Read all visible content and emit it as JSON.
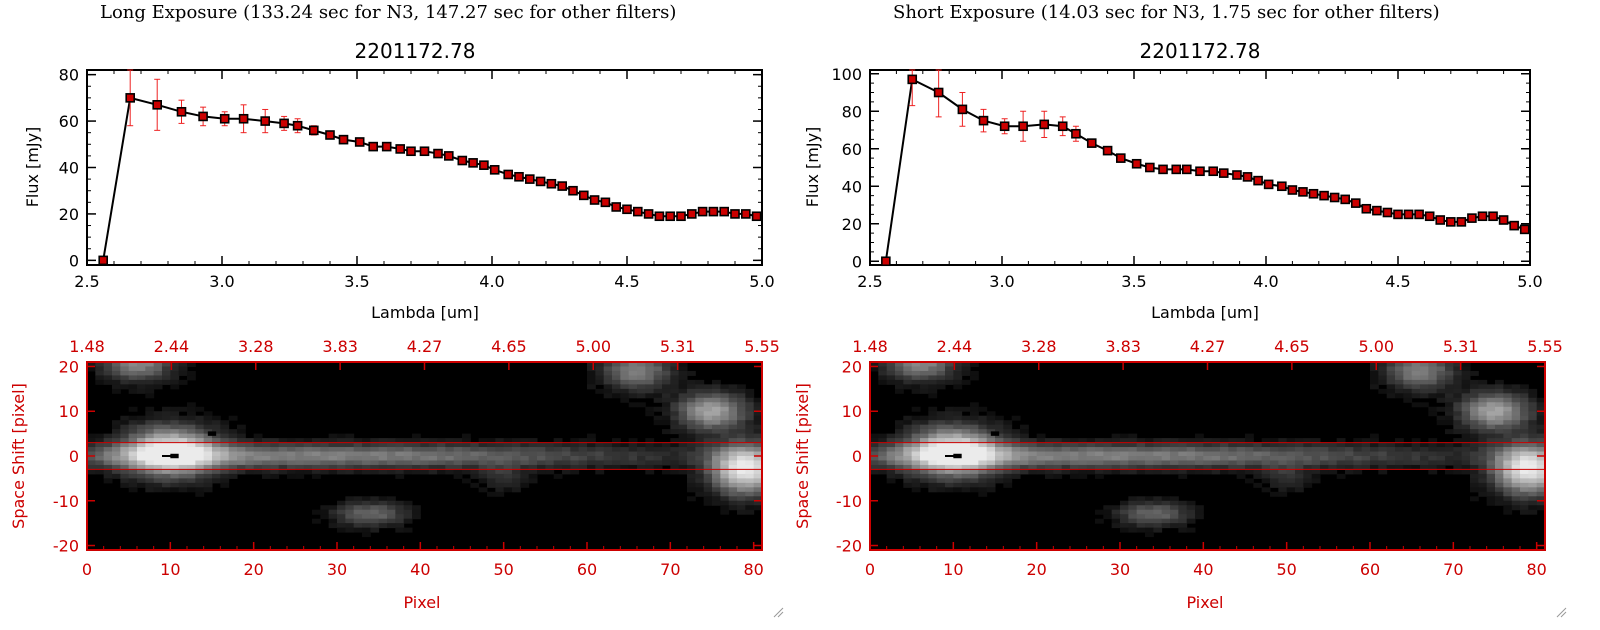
{
  "colors": {
    "axis": "#000000",
    "point": "#cc0000",
    "errbar": "#ee2222",
    "image_axis": "#cc0000",
    "aperture": "#cc0000"
  },
  "panels": [
    {
      "exposure_title": "Long Exposure (133.24 sec for N3, 147.27 sec for other filters)",
      "spectrum": {
        "title": "2201172.78",
        "xlabel": "Lambda [um]",
        "ylabel": "Flux [mJy]"
      },
      "image": {
        "xlabel": "Pixel",
        "ylabel": "Space Shift [pixel]",
        "top_ticks": [
          "1.48",
          "2.44",
          "3.28",
          "3.83",
          "4.27",
          "4.65",
          "5.00",
          "5.31",
          "5.55"
        ]
      }
    },
    {
      "exposure_title": "Short Exposure (14.03 sec for N3, 1.75 sec for other filters)",
      "spectrum": {
        "title": "2201172.78",
        "xlabel": "Lambda [um]",
        "ylabel": "Flux [mJy]"
      },
      "image": {
        "xlabel": "Pixel",
        "ylabel": "Space Shift [pixel]",
        "top_ticks": [
          "1.48",
          "2.44",
          "3.28",
          "3.83",
          "4.27",
          "4.65",
          "5.00",
          "5.31",
          "5.55"
        ]
      }
    }
  ],
  "chart_data": [
    {
      "type": "line",
      "title": "2201172.78",
      "xlabel": "Lambda [um]",
      "ylabel": "Flux [mJy]",
      "xlim": [
        2.5,
        5.0
      ],
      "ylim": [
        -2,
        82
      ],
      "xticks": [
        "2.5",
        "3.0",
        "3.5",
        "4.0",
        "4.5",
        "5.0"
      ],
      "yticks": [
        "0",
        "20",
        "40",
        "60",
        "80"
      ],
      "x": [
        2.56,
        2.66,
        2.76,
        2.85,
        2.93,
        3.01,
        3.08,
        3.16,
        3.23,
        3.28,
        3.34,
        3.4,
        3.45,
        3.51,
        3.56,
        3.61,
        3.66,
        3.7,
        3.75,
        3.8,
        3.84,
        3.89,
        3.93,
        3.97,
        4.01,
        4.06,
        4.1,
        4.14,
        4.18,
        4.22,
        4.26,
        4.3,
        4.34,
        4.38,
        4.42,
        4.46,
        4.5,
        4.54,
        4.58,
        4.62,
        4.66,
        4.7,
        4.74,
        4.78,
        4.82,
        4.86,
        4.9,
        4.94,
        4.98
      ],
      "y": [
        0,
        70,
        67,
        64,
        62,
        61,
        61,
        60,
        59,
        58,
        56,
        54,
        52,
        51,
        49,
        49,
        48,
        47,
        47,
        46,
        45,
        43,
        42,
        41,
        39,
        37,
        36,
        35,
        34,
        33,
        32,
        30,
        28,
        26,
        25,
        23,
        22,
        21,
        20,
        19,
        19,
        19,
        20,
        21,
        21,
        21,
        20,
        20,
        19
      ],
      "err": [
        0,
        12,
        11,
        5,
        4,
        3,
        6,
        5,
        3,
        3,
        2,
        1,
        1,
        1,
        1,
        1,
        1,
        1,
        1,
        1,
        1,
        1,
        1,
        1,
        1,
        1,
        1,
        1,
        1,
        1,
        1,
        1,
        1,
        1,
        1,
        1,
        1,
        1,
        1,
        1,
        1,
        1,
        1,
        1,
        1,
        1,
        1,
        1,
        1
      ]
    },
    {
      "type": "line",
      "title": "2201172.78",
      "xlabel": "Lambda [um]",
      "ylabel": "Flux [mJy]",
      "xlim": [
        2.5,
        5.0
      ],
      "ylim": [
        -2,
        102
      ],
      "xticks": [
        "2.5",
        "3.0",
        "3.5",
        "4.0",
        "4.5",
        "5.0"
      ],
      "yticks": [
        "0",
        "20",
        "40",
        "60",
        "80",
        "100"
      ],
      "x": [
        2.56,
        2.66,
        2.76,
        2.85,
        2.93,
        3.01,
        3.08,
        3.16,
        3.23,
        3.28,
        3.34,
        3.4,
        3.45,
        3.51,
        3.56,
        3.61,
        3.66,
        3.7,
        3.75,
        3.8,
        3.84,
        3.89,
        3.93,
        3.97,
        4.01,
        4.06,
        4.1,
        4.14,
        4.18,
        4.22,
        4.26,
        4.3,
        4.34,
        4.38,
        4.42,
        4.46,
        4.5,
        4.54,
        4.58,
        4.62,
        4.66,
        4.7,
        4.74,
        4.78,
        4.82,
        4.86,
        4.9,
        4.94,
        4.98
      ],
      "y": [
        0,
        97,
        90,
        81,
        75,
        72,
        72,
        73,
        72,
        68,
        63,
        59,
        55,
        52,
        50,
        49,
        49,
        49,
        48,
        48,
        47,
        46,
        45,
        43,
        41,
        40,
        38,
        37,
        36,
        35,
        34,
        33,
        31,
        28,
        27,
        26,
        25,
        25,
        25,
        24,
        22,
        21,
        21,
        23,
        24,
        24,
        22,
        19,
        17
      ],
      "err": [
        0,
        14,
        13,
        9,
        6,
        4,
        8,
        7,
        5,
        4,
        2,
        1,
        1,
        1,
        1,
        1,
        1,
        1,
        1,
        1,
        1,
        1,
        1,
        1,
        1,
        1,
        1,
        1,
        1,
        1,
        1,
        1,
        1,
        1,
        1,
        1,
        1,
        1,
        1,
        1,
        1,
        1,
        1,
        1,
        1,
        1,
        1,
        1,
        1
      ]
    },
    {
      "type": "heatmap",
      "xlabel": "Pixel",
      "ylabel": "Space Shift [pixel]",
      "xlim": [
        0,
        81
      ],
      "ylim": [
        -21,
        21
      ],
      "xticks": [
        "0",
        "10",
        "20",
        "30",
        "40",
        "50",
        "60",
        "70",
        "80"
      ],
      "yticks": [
        "20",
        "10",
        "0",
        "-10",
        "-20"
      ],
      "aperture_lines": [
        3,
        -3
      ],
      "blobs": [
        {
          "x": 10,
          "y": 1,
          "amp": 0.95,
          "sx": 4,
          "sy": 4
        },
        {
          "x": 28,
          "y": 0,
          "amp": 0.55,
          "sx": 28,
          "sy": 2
        },
        {
          "x": 6,
          "y": 21,
          "amp": 0.6,
          "sx": 3,
          "sy": 3
        },
        {
          "x": 34,
          "y": -13,
          "amp": 0.45,
          "sx": 3,
          "sy": 2
        },
        {
          "x": 79,
          "y": -3,
          "amp": 1.0,
          "sx": 3,
          "sy": 4
        },
        {
          "x": 75,
          "y": 10,
          "amp": 0.7,
          "sx": 3,
          "sy": 3
        },
        {
          "x": 66,
          "y": 19,
          "amp": 0.55,
          "sx": 3,
          "sy": 3
        },
        {
          "x": 50,
          "y": -5,
          "amp": 0.2,
          "sx": 2,
          "sy": 2
        }
      ]
    }
  ]
}
